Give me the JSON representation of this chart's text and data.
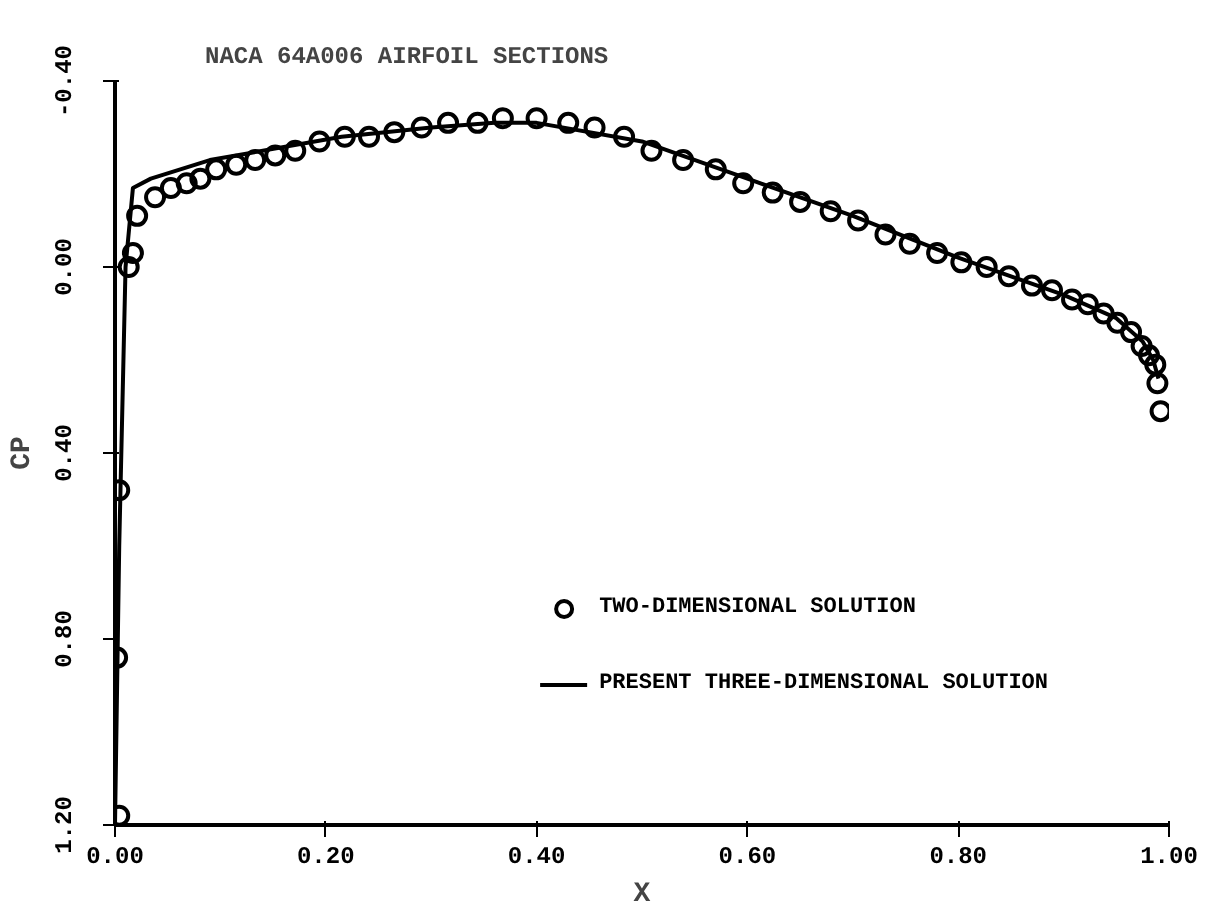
{
  "chart_data": {
    "type": "line",
    "title": "NACA 64A006 AIRFOIL SECTIONS",
    "xlabel": "X",
    "ylabel": "CP",
    "xlim": [
      0,
      1
    ],
    "ylim": [
      1.2,
      -0.4
    ],
    "xticks": [
      {
        "value": 0,
        "label": "0.00"
      },
      {
        "value": 0.2,
        "label": "0.20"
      },
      {
        "value": 0.4,
        "label": "0.40"
      },
      {
        "value": 0.6,
        "label": "0.60"
      },
      {
        "value": 0.8,
        "label": "0.80"
      },
      {
        "value": 1,
        "label": "1.00"
      }
    ],
    "yticks": [
      {
        "value": -0.4,
        "label": "-0.40"
      },
      {
        "value": 0,
        "label": "0.00"
      },
      {
        "value": 0.4,
        "label": "0.40"
      },
      {
        "value": 0.8,
        "label": "0.80"
      },
      {
        "value": 1.2,
        "label": "1.20"
      }
    ],
    "grid": false,
    "legend": "bottom right",
    "series": [
      {
        "name": "TWO-DIMENSIONAL SOLUTION",
        "type": "scatter",
        "marker": "circle",
        "color": "#000000",
        "x": [
          0.004,
          0.002,
          0.004,
          0.013,
          0.017,
          0.021,
          0.038,
          0.053,
          0.068,
          0.081,
          0.096,
          0.115,
          0.133,
          0.152,
          0.171,
          0.194,
          0.218,
          0.241,
          0.265,
          0.291,
          0.316,
          0.344,
          0.368,
          0.4,
          0.43,
          0.455,
          0.483,
          0.509,
          0.539,
          0.57,
          0.596,
          0.624,
          0.65,
          0.679,
          0.705,
          0.731,
          0.754,
          0.78,
          0.803,
          0.827,
          0.848,
          0.87,
          0.889,
          0.908,
          0.923,
          0.938,
          0.951,
          0.964,
          0.974,
          0.981,
          0.987,
          0.989,
          0.992
        ],
        "values": [
          1.18,
          0.84,
          0.48,
          0.0,
          -0.03,
          -0.11,
          -0.15,
          -0.17,
          -0.18,
          -0.19,
          -0.21,
          -0.22,
          -0.23,
          -0.24,
          -0.25,
          -0.27,
          -0.28,
          -0.28,
          -0.29,
          -0.3,
          -0.31,
          -0.31,
          -0.32,
          -0.32,
          -0.31,
          -0.3,
          -0.28,
          -0.25,
          -0.23,
          -0.21,
          -0.18,
          -0.16,
          -0.14,
          -0.12,
          -0.1,
          -0.07,
          -0.05,
          -0.03,
          -0.01,
          0.0,
          0.02,
          0.04,
          0.05,
          0.07,
          0.08,
          0.1,
          0.12,
          0.14,
          0.17,
          0.19,
          0.21,
          0.25,
          0.31
        ]
      },
      {
        "name": "PRESENT THREE-DIMENSIONAL SOLUTION",
        "line_style": "solid",
        "color": "#000000",
        "x": [
          0.0,
          0.004,
          0.01,
          0.017,
          0.034,
          0.09,
          0.215,
          0.3,
          0.36,
          0.4,
          0.5,
          0.6,
          0.7,
          0.8,
          0.9,
          0.95,
          0.975,
          0.985,
          0.99
        ],
        "values": [
          1.2,
          0.6,
          0.0,
          -0.17,
          -0.19,
          -0.23,
          -0.28,
          -0.3,
          -0.31,
          -0.31,
          -0.27,
          -0.19,
          -0.11,
          -0.02,
          0.06,
          0.11,
          0.16,
          0.2,
          0.24
        ]
      }
    ]
  }
}
